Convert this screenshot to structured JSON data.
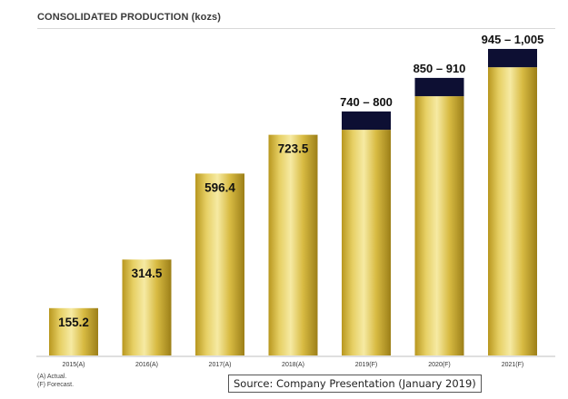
{
  "chart_data": {
    "type": "bar",
    "title": "CONSOLIDATED PRODUCTION (kozs)",
    "categories": [
      "2015(A)",
      "2016(A)",
      "2017(A)",
      "2018(A)",
      "2019(F)",
      "2020(F)",
      "2021(F)"
    ],
    "series": [
      {
        "values": [
          155.2,
          314.5,
          596.4,
          723.5,
          740,
          850,
          945
        ]
      },
      {
        "values": [
          0,
          0,
          0,
          0,
          60,
          60,
          60
        ]
      }
    ],
    "data_labels": [
      "155.2",
      "314.5",
      "596.4",
      "723.5",
      "740 – 800",
      "850 – 910",
      "945 – 1,005"
    ],
    "ylim": [
      0,
      1100
    ],
    "grid": false,
    "colors": {
      "bar_gold_light": "#f3e59a",
      "bar_gold_mid": "#d9bd45",
      "bar_gold_dark": "#a88a1f",
      "range_cap": "#0d0f33",
      "axis": "#bfbfbf"
    }
  },
  "notes": {
    "actual": "(A) Actual.",
    "forecast": "(F) Forecast."
  },
  "source": "Source: Company Presentation (January 2019)"
}
